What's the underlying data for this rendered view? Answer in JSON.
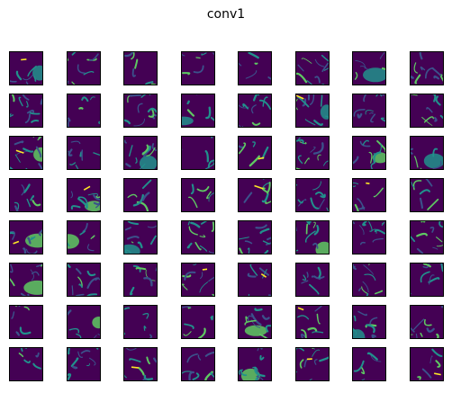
{
  "figure": {
    "title": "conv1",
    "rows": 8,
    "cols": 8,
    "colormap": {
      "name": "viridis",
      "low": "#440154",
      "mid_low": "#3b528b",
      "mid": "#21918c",
      "mid_high": "#5ec962",
      "high": "#fde725"
    },
    "axes_visible": false
  }
}
